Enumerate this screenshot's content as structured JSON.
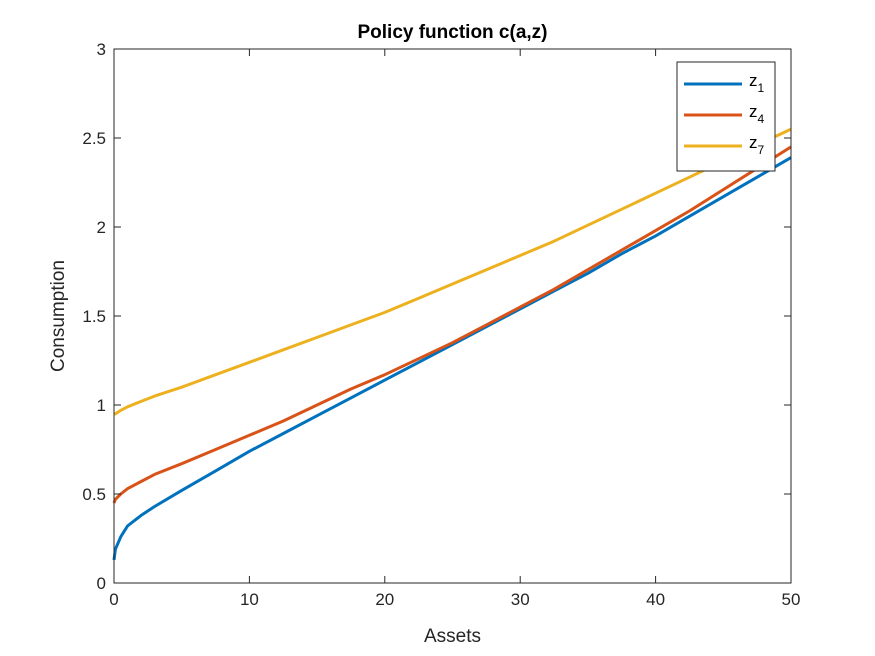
{
  "chart_data": {
    "type": "line",
    "title": "Policy function c(a,z)",
    "xlabel": "Assets",
    "ylabel": "Consumption",
    "xlim": [
      0,
      50
    ],
    "ylim": [
      0,
      3
    ],
    "xticks": [
      "0",
      "10",
      "20",
      "30",
      "40",
      "50"
    ],
    "yticks": [
      "0",
      "0.5",
      "1",
      "1.5",
      "2",
      "2.5",
      "3"
    ],
    "grid": false,
    "legend_position": "top-right",
    "x": [
      0,
      0.1,
      0.5,
      1,
      2,
      3,
      5,
      7.5,
      10,
      12.5,
      15,
      17.5,
      20,
      22.5,
      25,
      27.5,
      30,
      32.5,
      35,
      37.5,
      40,
      42.5,
      45,
      47.5,
      50
    ],
    "series": [
      {
        "name": "z",
        "subscript": "1",
        "color": "#0072BD",
        "values": [
          0.13,
          0.19,
          0.26,
          0.32,
          0.38,
          0.43,
          0.52,
          0.63,
          0.74,
          0.84,
          0.94,
          1.04,
          1.14,
          1.24,
          1.34,
          1.44,
          1.54,
          1.64,
          1.74,
          1.85,
          1.95,
          2.06,
          2.17,
          2.28,
          2.39
        ]
      },
      {
        "name": "z",
        "subscript": "4",
        "color": "#D95319",
        "values": [
          0.45,
          0.47,
          0.5,
          0.53,
          0.57,
          0.61,
          0.67,
          0.75,
          0.83,
          0.91,
          1.0,
          1.09,
          1.17,
          1.26,
          1.35,
          1.45,
          1.55,
          1.65,
          1.76,
          1.87,
          1.98,
          2.09,
          2.21,
          2.33,
          2.45
        ]
      },
      {
        "name": "z",
        "subscript": "7",
        "color": "#EDB120",
        "values": [
          0.95,
          0.95,
          0.97,
          0.99,
          1.02,
          1.05,
          1.1,
          1.17,
          1.24,
          1.31,
          1.38,
          1.45,
          1.52,
          1.6,
          1.68,
          1.76,
          1.84,
          1.92,
          2.01,
          2.1,
          2.19,
          2.28,
          2.37,
          2.46,
          2.55
        ]
      }
    ]
  }
}
